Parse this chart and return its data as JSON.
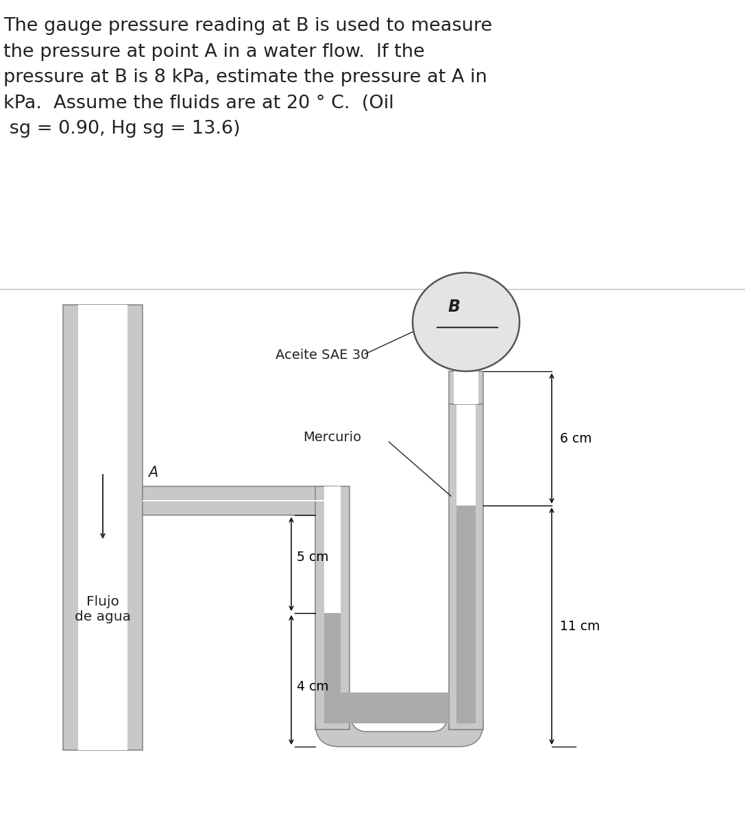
{
  "title_text": "The gauge pressure reading at B is used to measure\nthe pressure at point A in a water flow.  If the\npressure at B is 8 kPa, estimate the pressure at A in\nkPa.  Assume the fluids are at 20 ° C.  (Oil\n sg = 0.90, Hg sg = 13.6)",
  "label_aceite": "Aceite SAE 30",
  "label_mercurio": "Mercurio",
  "label_B": "B",
  "label_A": "A",
  "label_flujo": "Flujo\nde agua",
  "dim_6cm": "6 cm",
  "dim_11cm": "11 cm",
  "dim_5cm": "5 cm",
  "dim_4cm": "4 cm",
  "bg_color": "#ffffff",
  "pipe_gray": "#c8c8c8",
  "pipe_dark": "#888888",
  "pipe_white": "#ffffff",
  "mercury_gray": "#aaaaaa",
  "gauge_fill": "#e4e4e4",
  "divider_color": "#bbbbbb",
  "text_color": "#222222"
}
